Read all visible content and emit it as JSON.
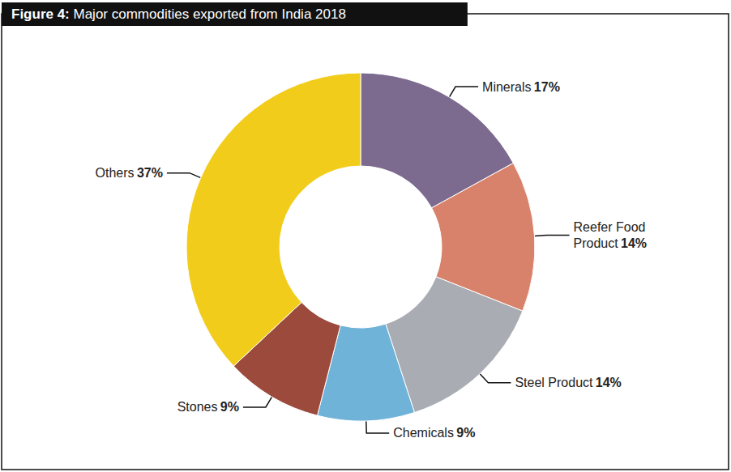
{
  "chart_data": {
    "type": "pie",
    "title": "Figure 4: Major commodities exported from India 2018",
    "categories": [
      "Minerals",
      "Reefer Food Product",
      "Steel Product",
      "Chemicals",
      "Stones",
      "Others"
    ],
    "values": [
      17,
      14,
      14,
      9,
      9,
      37
    ],
    "value_labels": [
      "17%",
      "14%",
      "14%",
      "9%",
      "9%",
      "37%"
    ],
    "colors": [
      "#7d6b8f",
      "#d9826b",
      "#a9adb3",
      "#6fb3d9",
      "#9c4a3c",
      "#f2cc1a"
    ],
    "data_labels": true
  }
}
